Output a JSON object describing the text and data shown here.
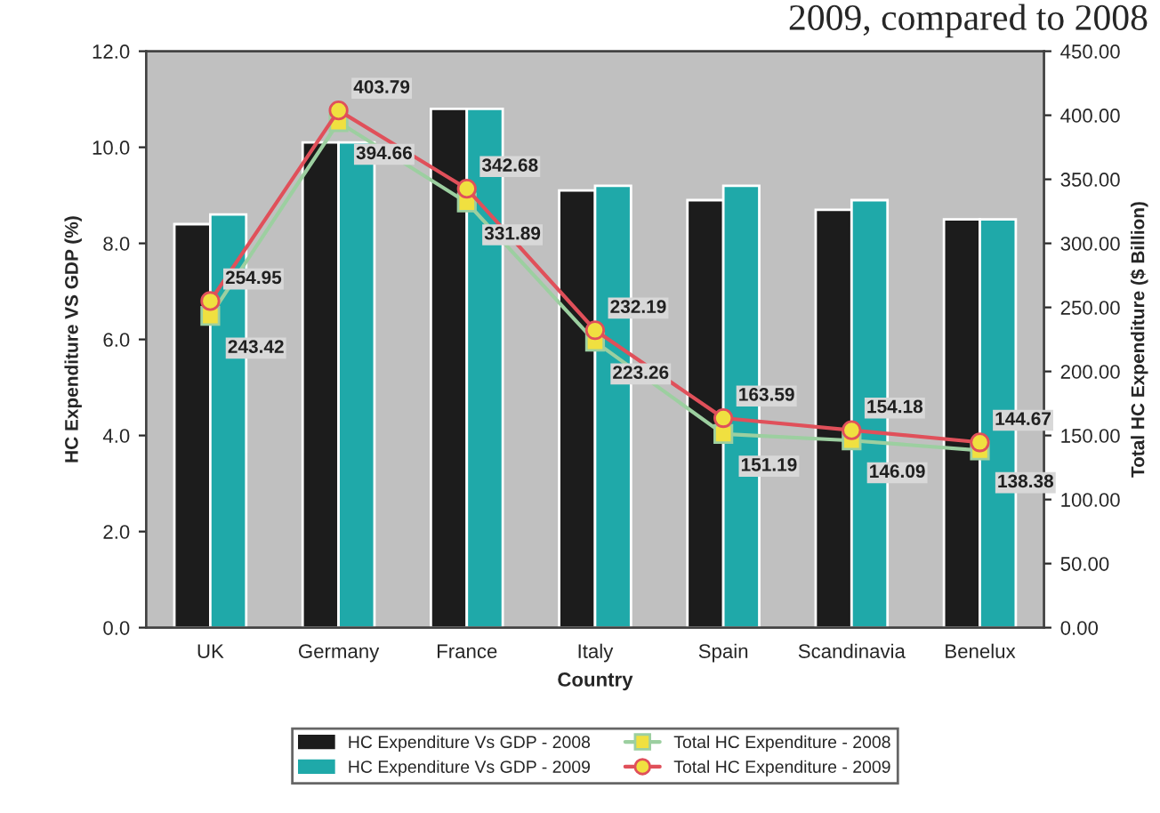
{
  "chart_data": {
    "type": "bar",
    "annotations": [
      "2009, compared to 2008"
    ],
    "xlabel": "Country",
    "ylabel": "HC Expenditure VS GDP (%)",
    "y2label": "Total HC Expenditure ($ Billion)",
    "categories": [
      "UK",
      "Germany",
      "France",
      "Italy",
      "Spain",
      "Scandinavia",
      "Benelux"
    ],
    "series": [
      {
        "name": "HC Expenditure Vs GDP - 2008",
        "color": "#1c1c1c",
        "values": [
          8.4,
          10.1,
          10.8,
          9.1,
          8.9,
          8.7,
          8.5
        ]
      },
      {
        "name": "HC Expenditure Vs GDP - 2009",
        "color": "#1fa9a9",
        "values": [
          8.6,
          10.1,
          10.8,
          9.2,
          9.2,
          8.9,
          8.5
        ]
      },
      {
        "name": "Total HC Expenditure - 2008",
        "type": "line",
        "axis": "y2",
        "color": "#9ccfa0",
        "marker": "square",
        "values": [
          243.42,
          394.66,
          331.89,
          223.26,
          151.19,
          146.09,
          138.38
        ],
        "value_labels": [
          "243.42",
          "394.66",
          "331.89",
          "223.26",
          "151.19",
          "146.09",
          "138.38"
        ]
      },
      {
        "name": "Total HC Expenditure - 2009",
        "type": "line",
        "axis": "y2",
        "color": "#e0505a",
        "marker": "circle",
        "values": [
          254.95,
          403.79,
          342.68,
          232.19,
          163.59,
          154.18,
          144.67
        ],
        "value_labels": [
          "254.95",
          "403.79",
          "342.68",
          "232.19",
          "163.59",
          "154.18",
          "144.67"
        ]
      }
    ],
    "ylim": [
      0,
      12
    ],
    "yticks": [
      {
        "value": 0,
        "label": "0.0"
      },
      {
        "value": 2,
        "label": "2.0"
      },
      {
        "value": 4,
        "label": "4.0"
      },
      {
        "value": 6,
        "label": "6.0"
      },
      {
        "value": 8,
        "label": "8.0"
      },
      {
        "value": 10,
        "label": "10.0"
      },
      {
        "value": 12,
        "label": "12.0"
      }
    ],
    "y2lim": [
      0,
      450
    ],
    "y2ticks": [
      {
        "value": 0,
        "label": "0.00"
      },
      {
        "value": 50,
        "label": "50.00"
      },
      {
        "value": 100,
        "label": "100.00"
      },
      {
        "value": 150,
        "label": "150.00"
      },
      {
        "value": 200,
        "label": "200.00"
      },
      {
        "value": 250,
        "label": "250.00"
      },
      {
        "value": 300,
        "label": "300.00"
      },
      {
        "value": 350,
        "label": "350.00"
      },
      {
        "value": 400,
        "label": "400.00"
      },
      {
        "value": 450,
        "label": "450.00"
      }
    ],
    "grid": false,
    "legend": "bottom"
  }
}
